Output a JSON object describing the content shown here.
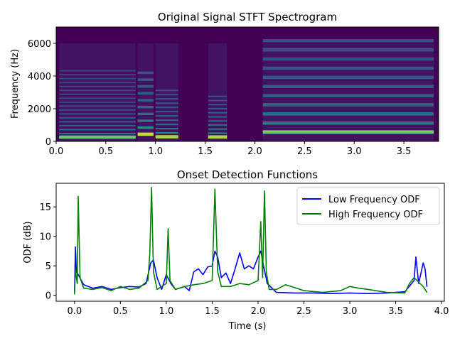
{
  "chart_data": [
    {
      "type": "heatmap",
      "title": "Original Signal STFT Spectrogram",
      "xlabel": "",
      "ylabel": "Frequency (Hz)",
      "xlim": [
        0,
        3.85
      ],
      "ylim": [
        0,
        7000
      ],
      "x_ticks": [
        0.0,
        0.5,
        1.0,
        1.5,
        2.0,
        2.5,
        3.0,
        3.5
      ],
      "x_tick_labels": [
        "0.0",
        "0.5",
        "1.0",
        "1.5",
        "2.0",
        "2.5",
        "3.0",
        "3.5"
      ],
      "y_ticks": [
        0,
        2000,
        4000,
        6000
      ],
      "y_tick_labels": [
        "0",
        "2000",
        "4000",
        "6000"
      ],
      "colormap": "viridis",
      "background_color": "#440154",
      "segments": [
        {
          "start": 0.03,
          "end": 0.8,
          "f0": 240,
          "harmonics": 18,
          "energy": 0.42
        },
        {
          "start": 0.82,
          "end": 0.98,
          "f0": 420,
          "harmonics": 10,
          "energy": 0.55
        },
        {
          "start": 1.0,
          "end": 1.23,
          "f0": 260,
          "harmonics": 12,
          "energy": 0.5
        },
        {
          "start": 1.53,
          "end": 1.72,
          "f0": 250,
          "harmonics": 11,
          "energy": 0.52
        },
        {
          "start": 2.08,
          "end": 3.8,
          "f0": 560,
          "harmonics": 16,
          "energy": 0.45
        }
      ],
      "grid": false,
      "legend": false
    },
    {
      "type": "line",
      "title": "Onset Detection Functions",
      "xlabel": "Time (s)",
      "ylabel": "ODF (dB)",
      "xlim": [
        -0.2,
        4.03
      ],
      "ylim": [
        -1,
        19
      ],
      "x_ticks": [
        0.0,
        0.5,
        1.0,
        1.5,
        2.0,
        2.5,
        3.0,
        3.5,
        4.0
      ],
      "x_tick_labels": [
        "0.0",
        "0.5",
        "1.0",
        "1.5",
        "2.0",
        "2.5",
        "3.0",
        "3.5",
        "4.0"
      ],
      "y_ticks": [
        0,
        5,
        10,
        15
      ],
      "y_tick_labels": [
        "0",
        "5",
        "10",
        "15"
      ],
      "legend_position": "top-right",
      "grid": false,
      "series": [
        {
          "name": "Low Frequency ODF",
          "color": "#0000ff",
          "x": [
            0.0,
            0.01,
            0.02,
            0.04,
            0.1,
            0.2,
            0.3,
            0.4,
            0.5,
            0.6,
            0.7,
            0.78,
            0.83,
            0.86,
            0.9,
            0.95,
            1.0,
            1.05,
            1.1,
            1.2,
            1.25,
            1.3,
            1.35,
            1.4,
            1.45,
            1.5,
            1.53,
            1.56,
            1.6,
            1.65,
            1.7,
            1.75,
            1.8,
            1.85,
            1.9,
            1.95,
            2.0,
            2.03,
            2.06,
            2.1,
            2.2,
            2.4,
            2.6,
            2.8,
            3.0,
            3.2,
            3.4,
            3.6,
            3.7,
            3.72,
            3.75,
            3.8,
            3.82,
            3.84
          ],
          "y": [
            0.5,
            8.2,
            4.0,
            3.5,
            1.8,
            1.2,
            1.5,
            1.0,
            1.3,
            1.5,
            1.4,
            2.0,
            5.5,
            6.0,
            3.0,
            1.0,
            3.5,
            2.0,
            1.0,
            1.5,
            0.8,
            4.0,
            4.5,
            3.5,
            4.8,
            5.0,
            7.5,
            6.5,
            3.0,
            3.8,
            2.0,
            4.5,
            7.2,
            4.5,
            5.0,
            4.5,
            6.5,
            7.5,
            5.0,
            2.0,
            0.5,
            0.4,
            0.4,
            0.3,
            0.4,
            0.3,
            0.4,
            0.6,
            2.5,
            6.5,
            2.0,
            5.5,
            4.5,
            1.5
          ]
        },
        {
          "name": "High Frequency ODF",
          "color": "#008000",
          "x": [
            0.0,
            0.01,
            0.03,
            0.04,
            0.06,
            0.1,
            0.2,
            0.3,
            0.4,
            0.5,
            0.6,
            0.7,
            0.8,
            0.82,
            0.84,
            0.86,
            0.9,
            1.0,
            1.02,
            1.04,
            1.1,
            1.2,
            1.3,
            1.4,
            1.5,
            1.53,
            1.56,
            1.6,
            1.7,
            1.8,
            1.9,
            2.0,
            2.03,
            2.05,
            2.07,
            2.09,
            2.12,
            2.2,
            2.3,
            2.5,
            2.7,
            2.9,
            3.0,
            3.1,
            3.2,
            3.4,
            3.6,
            3.65,
            3.7,
            3.8,
            3.84
          ],
          "y": [
            0.2,
            4.2,
            2.0,
            16.8,
            3.0,
            1.2,
            1.0,
            1.3,
            0.8,
            1.5,
            1.0,
            1.2,
            2.5,
            7.0,
            18.3,
            4.0,
            1.0,
            2.0,
            11.3,
            2.5,
            1.0,
            1.5,
            1.8,
            2.0,
            2.5,
            18.0,
            4.0,
            1.5,
            1.5,
            2.0,
            1.8,
            2.5,
            12.5,
            3.0,
            17.7,
            4.0,
            1.0,
            1.0,
            1.8,
            0.8,
            0.5,
            0.8,
            1.5,
            1.2,
            1.0,
            0.5,
            0.4,
            2.0,
            3.0,
            1.5,
            0.5
          ]
        }
      ]
    }
  ]
}
